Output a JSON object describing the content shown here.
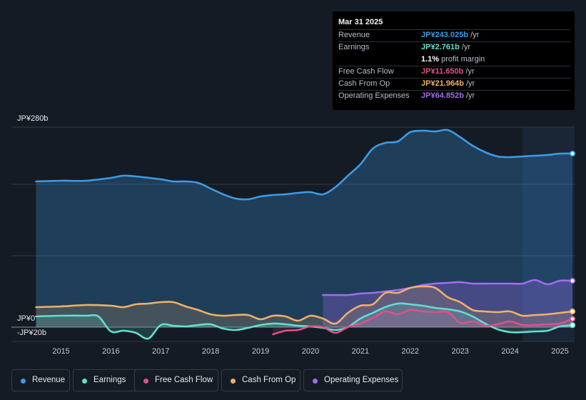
{
  "tooltip": {
    "date": "Mar 31 2025",
    "rows": [
      {
        "label": "Revenue",
        "value": "JP¥243.025b",
        "unit": " /yr",
        "color": "#3b9be6"
      },
      {
        "label": "Earnings",
        "value": "JP¥2.761b",
        "unit": " /yr",
        "color": "#5fe0cf"
      },
      {
        "label": "",
        "value": "1.1%",
        "unit": " profit margin",
        "color": "#ffffff"
      },
      {
        "label": "Free Cash Flow",
        "value": "JP¥11.650b",
        "unit": " /yr",
        "color": "#e0508a"
      },
      {
        "label": "Cash From Op",
        "value": "JP¥21.964b",
        "unit": " /yr",
        "color": "#f0b066"
      },
      {
        "label": "Operating Expenses",
        "value": "JP¥64.852b",
        "unit": " /yr",
        "color": "#a36bf0"
      }
    ]
  },
  "legend": [
    {
      "label": "Revenue",
      "color": "#3b9be6"
    },
    {
      "label": "Earnings",
      "color": "#5fe0cf"
    },
    {
      "label": "Free Cash Flow",
      "color": "#e0508a"
    },
    {
      "label": "Cash From Op",
      "color": "#f0b066"
    },
    {
      "label": "Operating Expenses",
      "color": "#a36bf0"
    }
  ],
  "chart_data": {
    "type": "line",
    "title": "",
    "xlabel": "",
    "ylabel": "",
    "ylim": [
      -20,
      280
    ],
    "y_tick_labels": [
      "JP¥280b",
      "JP¥0",
      "-JP¥20b"
    ],
    "x_tick_labels": [
      "2015",
      "2016",
      "2017",
      "2018",
      "2019",
      "2020",
      "2021",
      "2022",
      "2023",
      "2024",
      "2025"
    ],
    "xlim": [
      2014.45,
      2025.25
    ],
    "forecast_start": 2024.25,
    "series": [
      {
        "name": "Revenue",
        "color": "#3b9be6",
        "x": [
          2014.5,
          2015.0,
          2015.5,
          2016.0,
          2016.25,
          2016.5,
          2017.0,
          2017.25,
          2017.5,
          2017.75,
          2018.0,
          2018.25,
          2018.5,
          2018.75,
          2019.0,
          2019.25,
          2019.5,
          2019.75,
          2020.0,
          2020.25,
          2020.5,
          2020.75,
          2021.0,
          2021.25,
          2021.5,
          2021.75,
          2022.0,
          2022.25,
          2022.5,
          2022.75,
          2023.0,
          2023.25,
          2023.5,
          2023.75,
          2024.0,
          2024.25,
          2024.5,
          2024.75,
          2025.0,
          2025.25
        ],
        "values": [
          204,
          205,
          205,
          209,
          212,
          211,
          207,
          204,
          204,
          202,
          194,
          186,
          180,
          179,
          183,
          185,
          186,
          188,
          189,
          186,
          196,
          212,
          228,
          250,
          258,
          260,
          273,
          275,
          274,
          276,
          266,
          254,
          245,
          239,
          238,
          239,
          240,
          241,
          243,
          243
        ]
      },
      {
        "name": "Earnings",
        "color": "#5fe0cf",
        "x": [
          2014.5,
          2015.0,
          2015.5,
          2015.75,
          2016.0,
          2016.25,
          2016.5,
          2016.75,
          2017.0,
          2017.25,
          2017.5,
          2017.75,
          2018.0,
          2018.25,
          2018.5,
          2018.75,
          2019.0,
          2019.25,
          2019.5,
          2019.75,
          2020.0,
          2020.25,
          2020.5,
          2020.75,
          2021.0,
          2021.25,
          2021.5,
          2021.75,
          2022.0,
          2022.25,
          2022.5,
          2022.75,
          2023.0,
          2023.25,
          2023.5,
          2023.75,
          2024.0,
          2024.25,
          2024.5,
          2024.75,
          2025.0,
          2025.25
        ],
        "values": [
          15,
          16,
          16,
          15,
          -6,
          -5,
          -8,
          -16,
          3,
          2,
          1,
          3,
          4,
          -2,
          -4,
          -1,
          3,
          5,
          4,
          2,
          1,
          -1,
          -4,
          0,
          12,
          20,
          28,
          33,
          32,
          30,
          27,
          25,
          22,
          15,
          5,
          -3,
          -7,
          -7,
          -6,
          -5,
          1,
          2.761
        ]
      },
      {
        "name": "Free Cash Flow",
        "color": "#e0508a",
        "x": [
          2019.25,
          2019.5,
          2019.75,
          2020.0,
          2020.25,
          2020.5,
          2020.75,
          2021.0,
          2021.25,
          2021.5,
          2021.75,
          2022.0,
          2022.25,
          2022.5,
          2022.75,
          2023.0,
          2023.25,
          2023.5,
          2023.75,
          2024.0,
          2024.25,
          2024.5,
          2024.75,
          2025.0,
          2025.25
        ],
        "values": [
          -10,
          -5,
          -4,
          1,
          0,
          -8,
          0,
          5,
          13,
          22,
          18,
          24,
          22,
          21,
          21,
          6,
          8,
          2,
          4,
          8,
          3,
          3,
          4,
          5,
          11.65
        ]
      },
      {
        "name": "Cash From Op",
        "color": "#f0b066",
        "x": [
          2014.5,
          2015.0,
          2015.5,
          2016.0,
          2016.25,
          2016.5,
          2016.75,
          2017.0,
          2017.25,
          2017.5,
          2017.75,
          2018.0,
          2018.25,
          2018.5,
          2018.75,
          2019.0,
          2019.25,
          2019.5,
          2019.75,
          2020.0,
          2020.25,
          2020.5,
          2020.75,
          2021.0,
          2021.25,
          2021.5,
          2021.75,
          2022.0,
          2022.25,
          2022.5,
          2022.75,
          2023.0,
          2023.25,
          2023.5,
          2023.75,
          2024.0,
          2024.25,
          2024.5,
          2024.75,
          2025.0,
          2025.25
        ],
        "values": [
          28,
          29,
          31,
          30,
          28,
          32,
          33,
          35,
          35,
          29,
          24,
          18,
          16,
          17,
          17,
          11,
          16,
          15,
          9,
          16,
          12,
          5,
          20,
          30,
          32,
          48,
          48,
          55,
          57,
          55,
          42,
          35,
          24,
          22,
          21,
          22,
          16,
          17,
          18,
          20,
          21.964
        ]
      },
      {
        "name": "Operating Expenses",
        "color": "#a36bf0",
        "x": [
          2020.25,
          2020.5,
          2020.75,
          2021.0,
          2021.25,
          2021.5,
          2021.75,
          2022.0,
          2022.25,
          2022.5,
          2022.75,
          2023.0,
          2023.25,
          2023.5,
          2023.75,
          2024.0,
          2024.25,
          2024.5,
          2024.75,
          2025.0,
          2025.25
        ],
        "values": [
          45,
          45,
          45,
          47,
          48,
          50,
          52,
          55,
          59,
          61,
          62,
          63,
          61,
          61,
          61,
          61,
          61,
          66,
          60,
          65,
          64.852
        ]
      }
    ]
  }
}
